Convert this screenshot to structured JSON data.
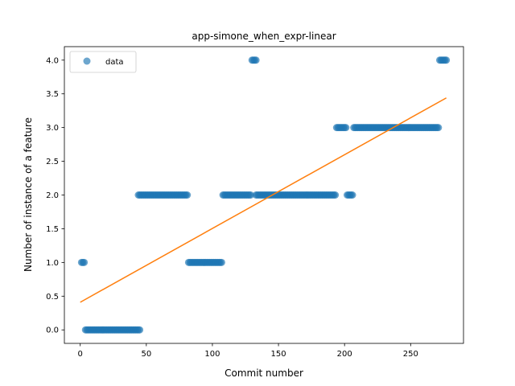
{
  "chart_data": {
    "type": "scatter",
    "title": "app-simone_when_expr-linear",
    "xlabel": "Commit number",
    "ylabel": "Number of instance of a feature",
    "xlim": [
      -12,
      290
    ],
    "ylim": [
      -0.2,
      4.2
    ],
    "xticks": [
      0,
      50,
      100,
      150,
      200,
      250
    ],
    "yticks": [
      0.0,
      0.5,
      1.0,
      1.5,
      2.0,
      2.5,
      3.0,
      3.5,
      4.0
    ],
    "xtick_labels": [
      "0",
      "50",
      "100",
      "150",
      "200",
      "250"
    ],
    "ytick_labels": [
      "0.0",
      "0.5",
      "1.0",
      "1.5",
      "2.0",
      "2.5",
      "3.0",
      "3.5",
      "4.0"
    ],
    "legend": {
      "position": "top-left",
      "entries": [
        "data"
      ]
    },
    "colors": {
      "data": "#1f77b4",
      "fit": "#ff7f0e"
    },
    "scatter_segments": [
      {
        "x_start": 1,
        "x_end": 3,
        "y": 1
      },
      {
        "x_start": 4,
        "x_end": 45,
        "y": 0
      },
      {
        "x_start": 44,
        "x_end": 81,
        "y": 2
      },
      {
        "x_start": 82,
        "x_end": 107,
        "y": 1
      },
      {
        "x_start": 108,
        "x_end": 129,
        "y": 2
      },
      {
        "x_start": 130,
        "x_end": 133,
        "y": 4
      },
      {
        "x_start": 133,
        "x_end": 193,
        "y": 2
      },
      {
        "x_start": 194,
        "x_end": 201,
        "y": 3
      },
      {
        "x_start": 202,
        "x_end": 206,
        "y": 2
      },
      {
        "x_start": 207,
        "x_end": 271,
        "y": 3
      },
      {
        "x_start": 272,
        "x_end": 277,
        "y": 4
      }
    ],
    "fit_line": {
      "x": [
        0,
        277
      ],
      "y": [
        0.41,
        3.44
      ]
    }
  }
}
